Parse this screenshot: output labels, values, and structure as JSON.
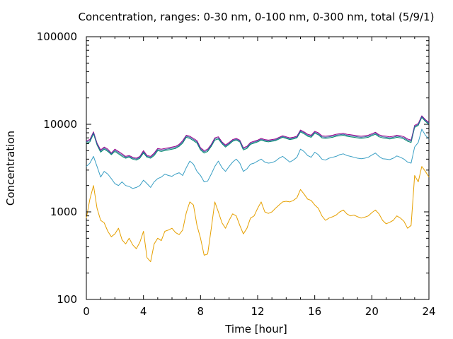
{
  "chart_data": {
    "type": "line",
    "title": "Concentration, ranges: 0-30 nm, 0-100 nm, 0-300 nm, total (5/9/1)",
    "xlabel": "Time [hour]",
    "ylabel": "Concentration",
    "xlim": [
      0,
      24
    ],
    "ylim": [
      100,
      100000
    ],
    "yscale": "log",
    "grid": false,
    "legend": "none",
    "xticks": [
      "0",
      "4",
      "8",
      "12",
      "16",
      "20",
      "24"
    ],
    "xtick_values": [
      0,
      4,
      8,
      12,
      16,
      20,
      24
    ],
    "yticks": [
      "100",
      "1000",
      "10000",
      "100000"
    ],
    "ytick_values": [
      100,
      1000,
      10000,
      100000
    ],
    "x": [
      0,
      0.25,
      0.5,
      0.75,
      1,
      1.25,
      1.5,
      1.75,
      2,
      2.25,
      2.5,
      2.75,
      3,
      3.25,
      3.5,
      3.75,
      4,
      4.25,
      4.5,
      4.75,
      5,
      5.25,
      5.5,
      5.75,
      6,
      6.25,
      6.5,
      6.75,
      7,
      7.25,
      7.5,
      7.75,
      8,
      8.25,
      8.5,
      8.75,
      9,
      9.25,
      9.5,
      9.75,
      10,
      10.25,
      10.5,
      10.75,
      11,
      11.25,
      11.5,
      11.75,
      12,
      12.25,
      12.5,
      12.75,
      13,
      13.25,
      13.5,
      13.75,
      14,
      14.25,
      14.5,
      14.75,
      15,
      15.25,
      15.5,
      15.75,
      16,
      16.25,
      16.5,
      16.75,
      17,
      17.25,
      17.5,
      17.75,
      18,
      18.25,
      18.5,
      18.75,
      19,
      19.25,
      19.5,
      19.75,
      20,
      20.25,
      20.5,
      20.75,
      21,
      21.25,
      21.5,
      21.75,
      22,
      22.25,
      22.5,
      22.75,
      23,
      23.25,
      23.5,
      23.75,
      24
    ],
    "series": [
      {
        "color": "#e6a000",
        "values": [
          850,
          1400,
          2000,
          1100,
          800,
          750,
          600,
          520,
          560,
          650,
          480,
          430,
          500,
          420,
          380,
          450,
          600,
          300,
          270,
          430,
          500,
          470,
          600,
          620,
          650,
          580,
          550,
          620,
          980,
          1300,
          1200,
          700,
          500,
          320,
          330,
          650,
          1300,
          1000,
          750,
          650,
          800,
          950,
          900,
          700,
          560,
          650,
          850,
          900,
          1100,
          1300,
          1000,
          960,
          1000,
          1100,
          1200,
          1300,
          1320,
          1300,
          1350,
          1450,
          1800,
          1600,
          1400,
          1350,
          1200,
          1100,
          900,
          800,
          850,
          880,
          920,
          1000,
          1050,
          950,
          900,
          920,
          880,
          850,
          870,
          900,
          980,
          1050,
          950,
          800,
          730,
          760,
          800,
          900,
          850,
          780,
          650,
          700,
          2600,
          2200,
          3300,
          2900,
          2500
        ]
      },
      {
        "color": "#3a9fc4",
        "values": [
          3300,
          3600,
          4300,
          3300,
          2500,
          2900,
          2700,
          2400,
          2100,
          2000,
          2200,
          2000,
          1950,
          1850,
          1900,
          2000,
          2300,
          2100,
          1900,
          2200,
          2400,
          2500,
          2700,
          2600,
          2550,
          2700,
          2800,
          2600,
          3200,
          3800,
          3500,
          2900,
          2600,
          2200,
          2250,
          2700,
          3300,
          3800,
          3200,
          2900,
          3300,
          3700,
          4000,
          3600,
          2900,
          3100,
          3500,
          3600,
          3800,
          4000,
          3700,
          3600,
          3650,
          3800,
          4100,
          4300,
          4000,
          3700,
          3900,
          4200,
          5200,
          4900,
          4400,
          4200,
          4800,
          4500,
          4000,
          3900,
          4100,
          4200,
          4300,
          4500,
          4600,
          4400,
          4300,
          4200,
          4100,
          4050,
          4100,
          4200,
          4450,
          4700,
          4300,
          4050,
          4000,
          3950,
          4100,
          4350,
          4200,
          4000,
          3700,
          3600,
          5500,
          6200,
          8800,
          7500,
          6800
        ]
      },
      {
        "color": "#00896a",
        "values": [
          6100,
          6300,
          7800,
          5800,
          4800,
          5200,
          4900,
          4500,
          4900,
          4600,
          4300,
          4100,
          4200,
          4000,
          3900,
          4100,
          4700,
          4200,
          4100,
          4400,
          5000,
          4900,
          5000,
          5100,
          5200,
          5300,
          5600,
          6100,
          7100,
          6900,
          6500,
          6100,
          5100,
          4700,
          4900,
          5600,
          6600,
          6800,
          6000,
          5500,
          5900,
          6400,
          6600,
          6300,
          5100,
          5300,
          5900,
          6100,
          6300,
          6600,
          6400,
          6300,
          6400,
          6500,
          6800,
          7100,
          6900,
          6700,
          6800,
          7000,
          8200,
          7800,
          7300,
          7100,
          7900,
          7600,
          7000,
          6900,
          7000,
          7100,
          7300,
          7400,
          7500,
          7300,
          7200,
          7100,
          7000,
          6900,
          7000,
          7100,
          7400,
          7700,
          7200,
          7000,
          6900,
          6800,
          6900,
          7100,
          7000,
          6800,
          6400,
          6200,
          9200,
          9700,
          12000,
          10800,
          10000
        ]
      },
      {
        "color": "#9a008a",
        "values": [
          6500,
          6700,
          8200,
          6100,
          5100,
          5500,
          5200,
          4700,
          5200,
          4900,
          4600,
          4300,
          4400,
          4200,
          4100,
          4300,
          5000,
          4400,
          4300,
          4700,
          5300,
          5200,
          5300,
          5400,
          5500,
          5600,
          5900,
          6500,
          7500,
          7300,
          6900,
          6500,
          5400,
          5000,
          5200,
          5900,
          7000,
          7200,
          6300,
          5800,
          6200,
          6700,
          6900,
          6600,
          5400,
          5600,
          6200,
          6400,
          6600,
          6900,
          6700,
          6600,
          6700,
          6800,
          7100,
          7400,
          7200,
          7000,
          7100,
          7300,
          8600,
          8200,
          7700,
          7500,
          8300,
          8000,
          7400,
          7300,
          7400,
          7500,
          7700,
          7800,
          7900,
          7700,
          7600,
          7500,
          7400,
          7300,
          7400,
          7500,
          7800,
          8100,
          7600,
          7400,
          7300,
          7200,
          7300,
          7500,
          7400,
          7200,
          6800,
          6600,
          9700,
          10200,
          12500,
          11300,
          10500
        ]
      },
      {
        "color": "#3465a4",
        "values": [
          6300,
          6500,
          8000,
          5950,
          4950,
          5350,
          5050,
          4600,
          5050,
          4750,
          4450,
          4200,
          4300,
          4100,
          4000,
          4200,
          4850,
          4300,
          4200,
          4550,
          5150,
          5050,
          5150,
          5250,
          5350,
          5450,
          5750,
          6300,
          7300,
          7100,
          6700,
          6300,
          5250,
          4850,
          5050,
          5750,
          6800,
          7000,
          6150,
          5650,
          6050,
          6550,
          6750,
          6450,
          5250,
          5450,
          6050,
          6250,
          6450,
          6750,
          6550,
          6450,
          6550,
          6650,
          6950,
          7250,
          7050,
          6850,
          6950,
          7150,
          8400,
          8000,
          7500,
          7300,
          8100,
          7800,
          7200,
          7100,
          7200,
          7300,
          7500,
          7600,
          7700,
          7500,
          7400,
          7300,
          7200,
          7100,
          7200,
          7300,
          7600,
          7900,
          7400,
          7200,
          7100,
          7000,
          7100,
          7300,
          7200,
          7000,
          6600,
          6400,
          9450,
          9950,
          12250,
          11050,
          10250
        ]
      }
    ]
  }
}
